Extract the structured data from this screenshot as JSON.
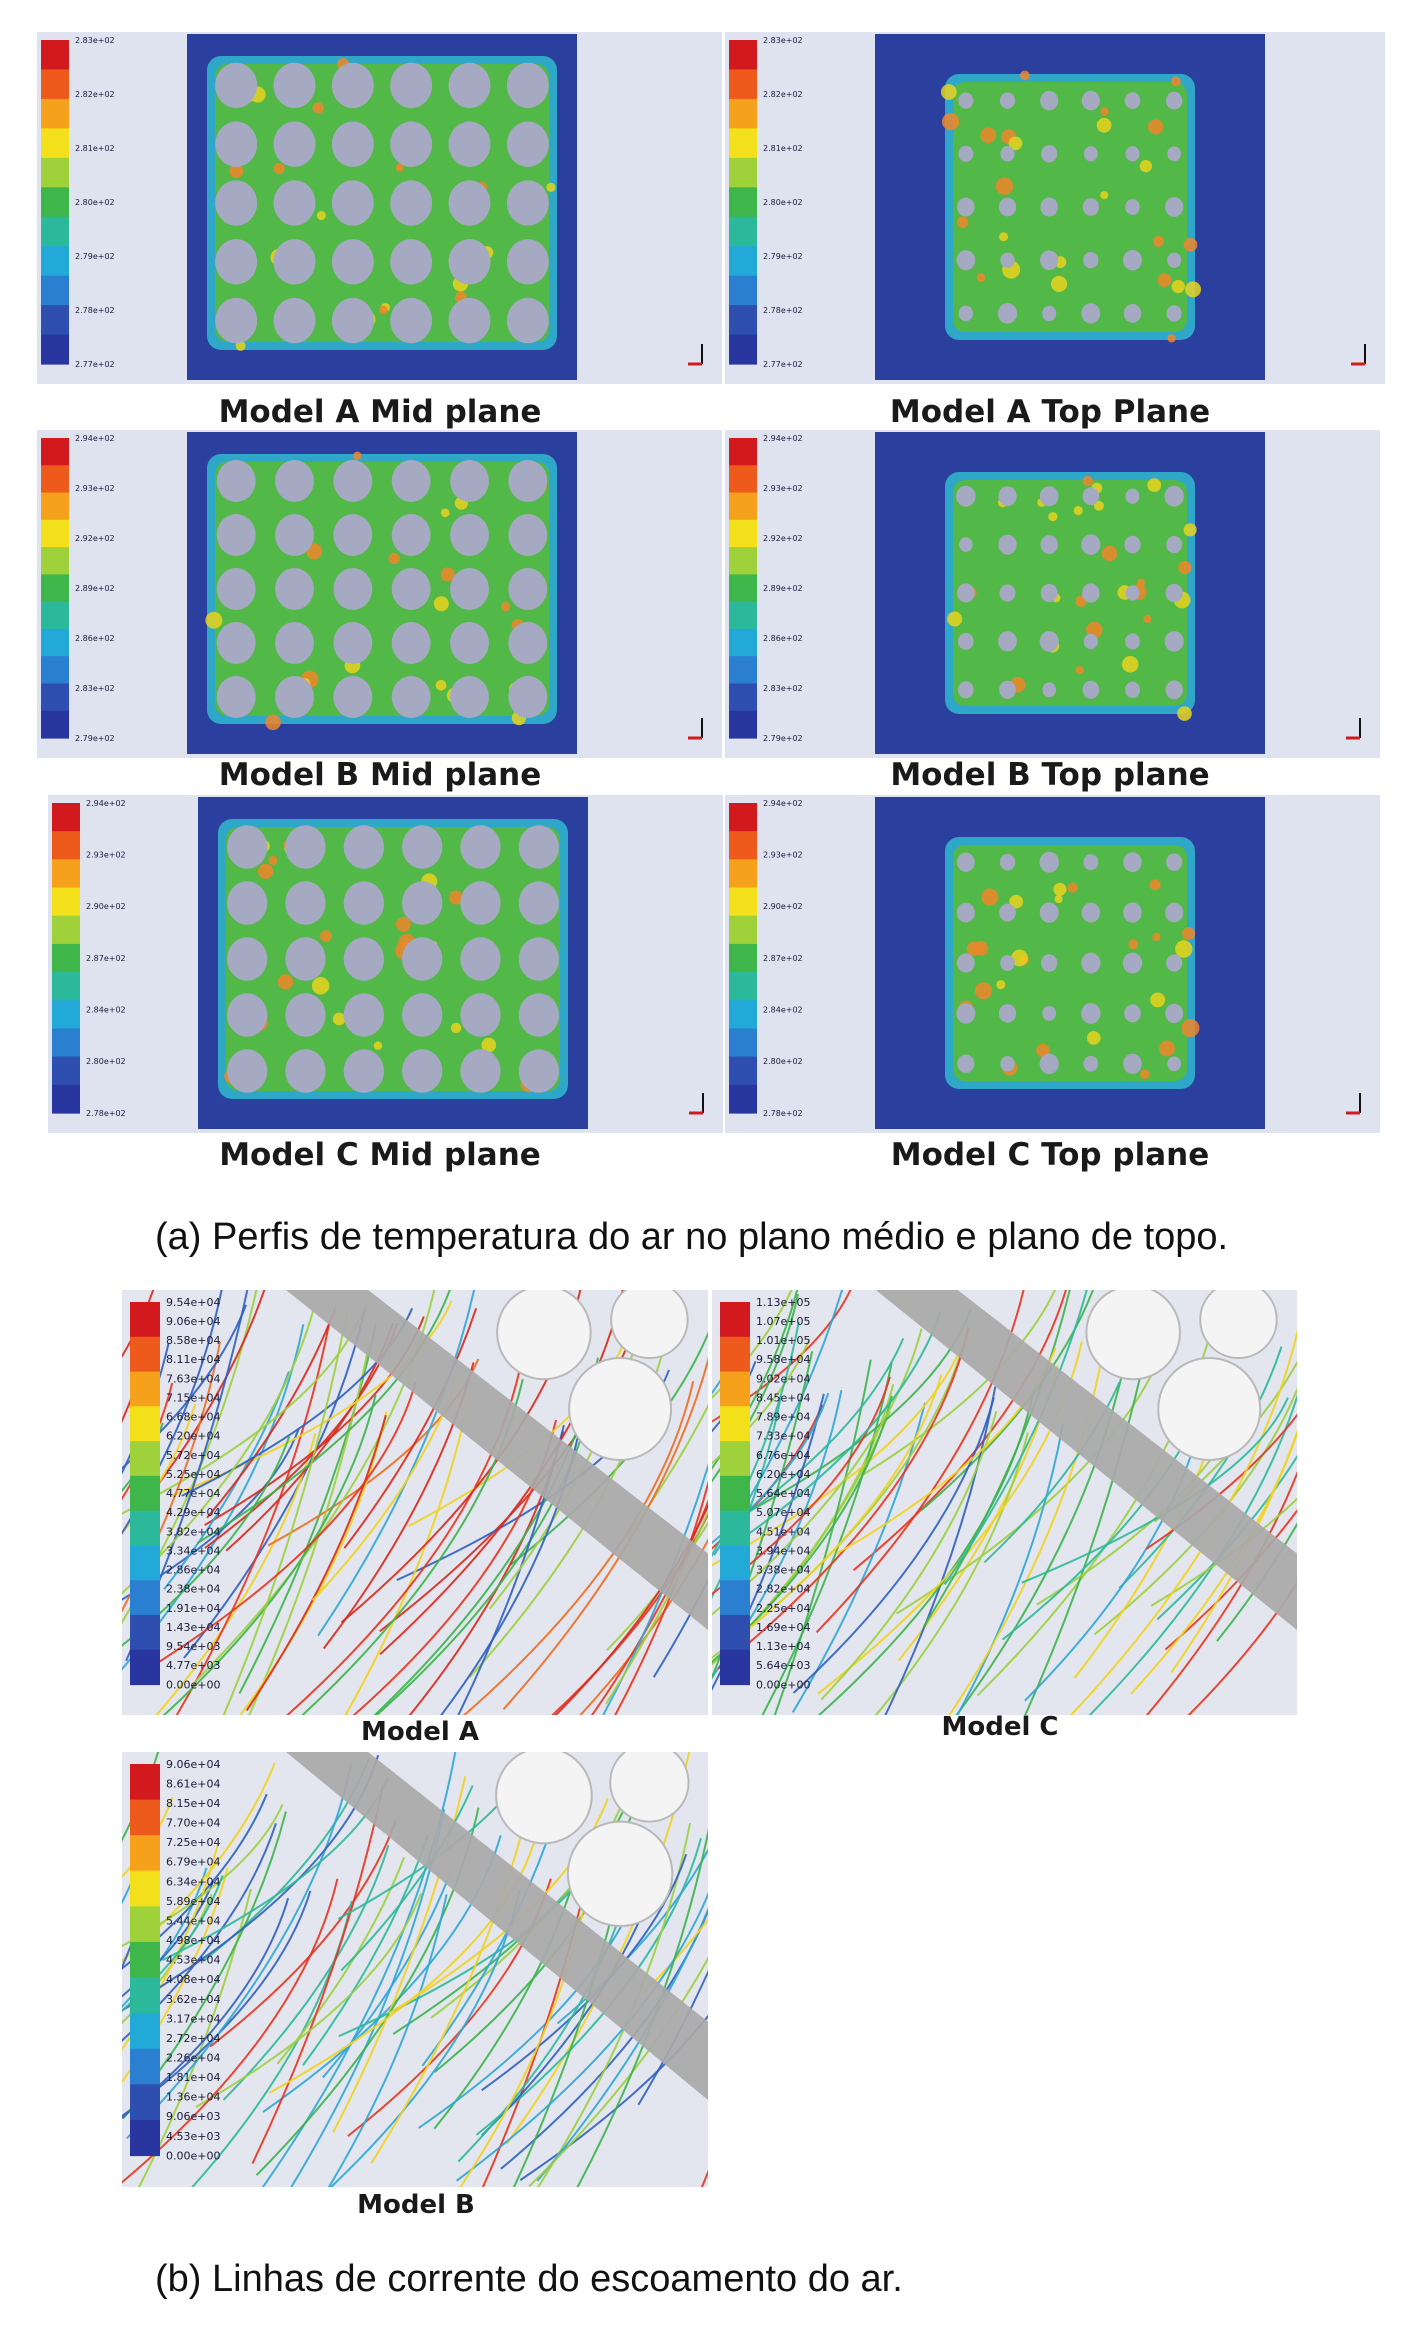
{
  "figure_a": {
    "caption": "(a)  Perfis de temperatura do ar no plano médio e plano de topo.",
    "panels": [
      {
        "label": "Model A Mid plane",
        "legend_ticks": [
          "2.83e+02",
          "2.82e+02",
          "2.81e+02",
          "2.80e+02",
          "2.79e+02",
          "2.78e+02",
          "2.77e+02"
        ]
      },
      {
        "label": "Model A Top Plane",
        "legend_ticks": [
          "2.83e+02",
          "2.82e+02",
          "2.81e+02",
          "2.80e+02",
          "2.79e+02",
          "2.78e+02",
          "2.77e+02"
        ]
      },
      {
        "label": "Model B Mid plane",
        "legend_ticks": [
          "2.94e+02",
          "2.93e+02",
          "2.92e+02",
          "2.89e+02",
          "2.86e+02",
          "2.83e+02",
          "2.79e+02"
        ]
      },
      {
        "label": "Model B Top plane",
        "legend_ticks": [
          "2.94e+02",
          "2.93e+02",
          "2.92e+02",
          "2.89e+02",
          "2.86e+02",
          "2.83e+02",
          "2.79e+02"
        ]
      },
      {
        "label": "Model C Mid plane",
        "legend_ticks": [
          "2.94e+02",
          "2.93e+02",
          "2.90e+02",
          "2.87e+02",
          "2.84e+02",
          "2.80e+02",
          "2.78e+02"
        ]
      },
      {
        "label": "Model C Top plane",
        "legend_ticks": [
          "2.94e+02",
          "2.93e+02",
          "2.90e+02",
          "2.87e+02",
          "2.84e+02",
          "2.80e+02",
          "2.78e+02"
        ]
      }
    ]
  },
  "figure_b": {
    "caption": "(b)  Linhas de corrente do escoamento do ar.",
    "panels": [
      {
        "label": "Model A",
        "legend_ticks": [
          "9.54e+04",
          "9.06e+04",
          "8.58e+04",
          "8.11e+04",
          "7.63e+04",
          "7.15e+04",
          "6.68e+04",
          "6.20e+04",
          "5.72e+04",
          "5.25e+04",
          "4.77e+04",
          "4.29e+04",
          "3.82e+04",
          "3.34e+04",
          "2.86e+04",
          "2.38e+04",
          "1.91e+04",
          "1.43e+04",
          "9.54e+03",
          "4.77e+03",
          "0.00e+00"
        ]
      },
      {
        "label": "Model C",
        "legend_ticks": [
          "1.13e+05",
          "1.07e+05",
          "1.01e+05",
          "9.58e+04",
          "9.02e+04",
          "8.45e+04",
          "7.89e+04",
          "7.33e+04",
          "6.76e+04",
          "6.20e+04",
          "5.64e+04",
          "5.07e+04",
          "4.51e+04",
          "3.94e+04",
          "3.38e+04",
          "2.82e+04",
          "2.25e+04",
          "1.69e+04",
          "1.13e+04",
          "5.64e+03",
          "0.00e+00"
        ]
      },
      {
        "label": "Model B",
        "legend_ticks": [
          "9.06e+04",
          "8.61e+04",
          "8.15e+04",
          "7.70e+04",
          "7.25e+04",
          "6.79e+04",
          "6.34e+04",
          "5.89e+04",
          "5.44e+04",
          "4.98e+04",
          "4.53e+04",
          "4.08e+04",
          "3.62e+04",
          "3.17e+04",
          "2.72e+04",
          "2.26e+04",
          "1.81e+04",
          "1.36e+04",
          "9.06e+03",
          "4.53e+03",
          "0.00e+00"
        ]
      }
    ]
  },
  "colors": {
    "field_blue": "#2b3f9e",
    "bg_panel": "#dfe3f0",
    "legend_scale": [
      "#d2191e",
      "#ee5a1c",
      "#f6a11c",
      "#f3e01a",
      "#9fd23a",
      "#3fb64a",
      "#2cb89a",
      "#22a9d8",
      "#2a7fd0",
      "#2e4fb0",
      "#2a36a0"
    ],
    "grey_surface": "#a9a9a9"
  }
}
